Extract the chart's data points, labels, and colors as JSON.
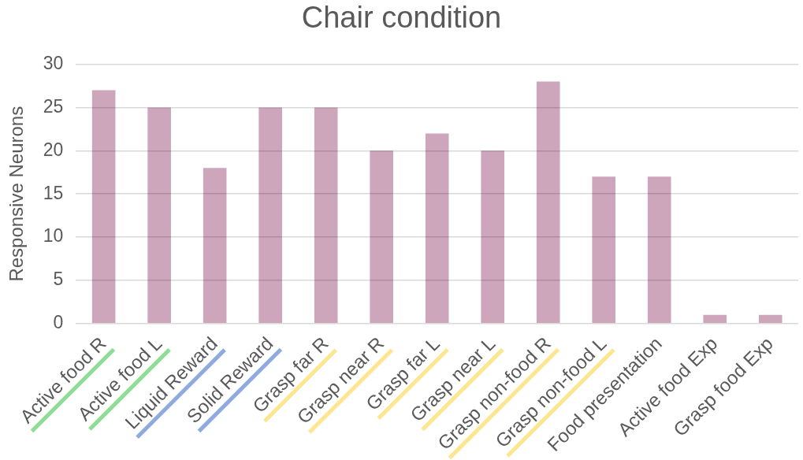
{
  "chart_data": {
    "type": "bar",
    "title": "Chair condition",
    "ylabel": "Responsive Neurons",
    "categories": [
      "Active food R",
      "Active food L",
      "Liquid Reward",
      "Solid Reward",
      "Grasp far R",
      "Grasp near R",
      "Grasp far L",
      "Grasp near L",
      "Grasp non-food R",
      "Grasp non-food L",
      "Food presentation",
      "Active food Exp",
      "Grasp food Exp"
    ],
    "values": [
      27,
      25,
      18,
      25,
      25,
      20,
      22,
      20,
      28,
      17,
      17,
      1,
      1
    ],
    "color": "#cda6bb",
    "ylim": [
      0,
      30
    ],
    "yticks": [
      0,
      5,
      10,
      15,
      20,
      25,
      30
    ],
    "grid": "y"
  }
}
